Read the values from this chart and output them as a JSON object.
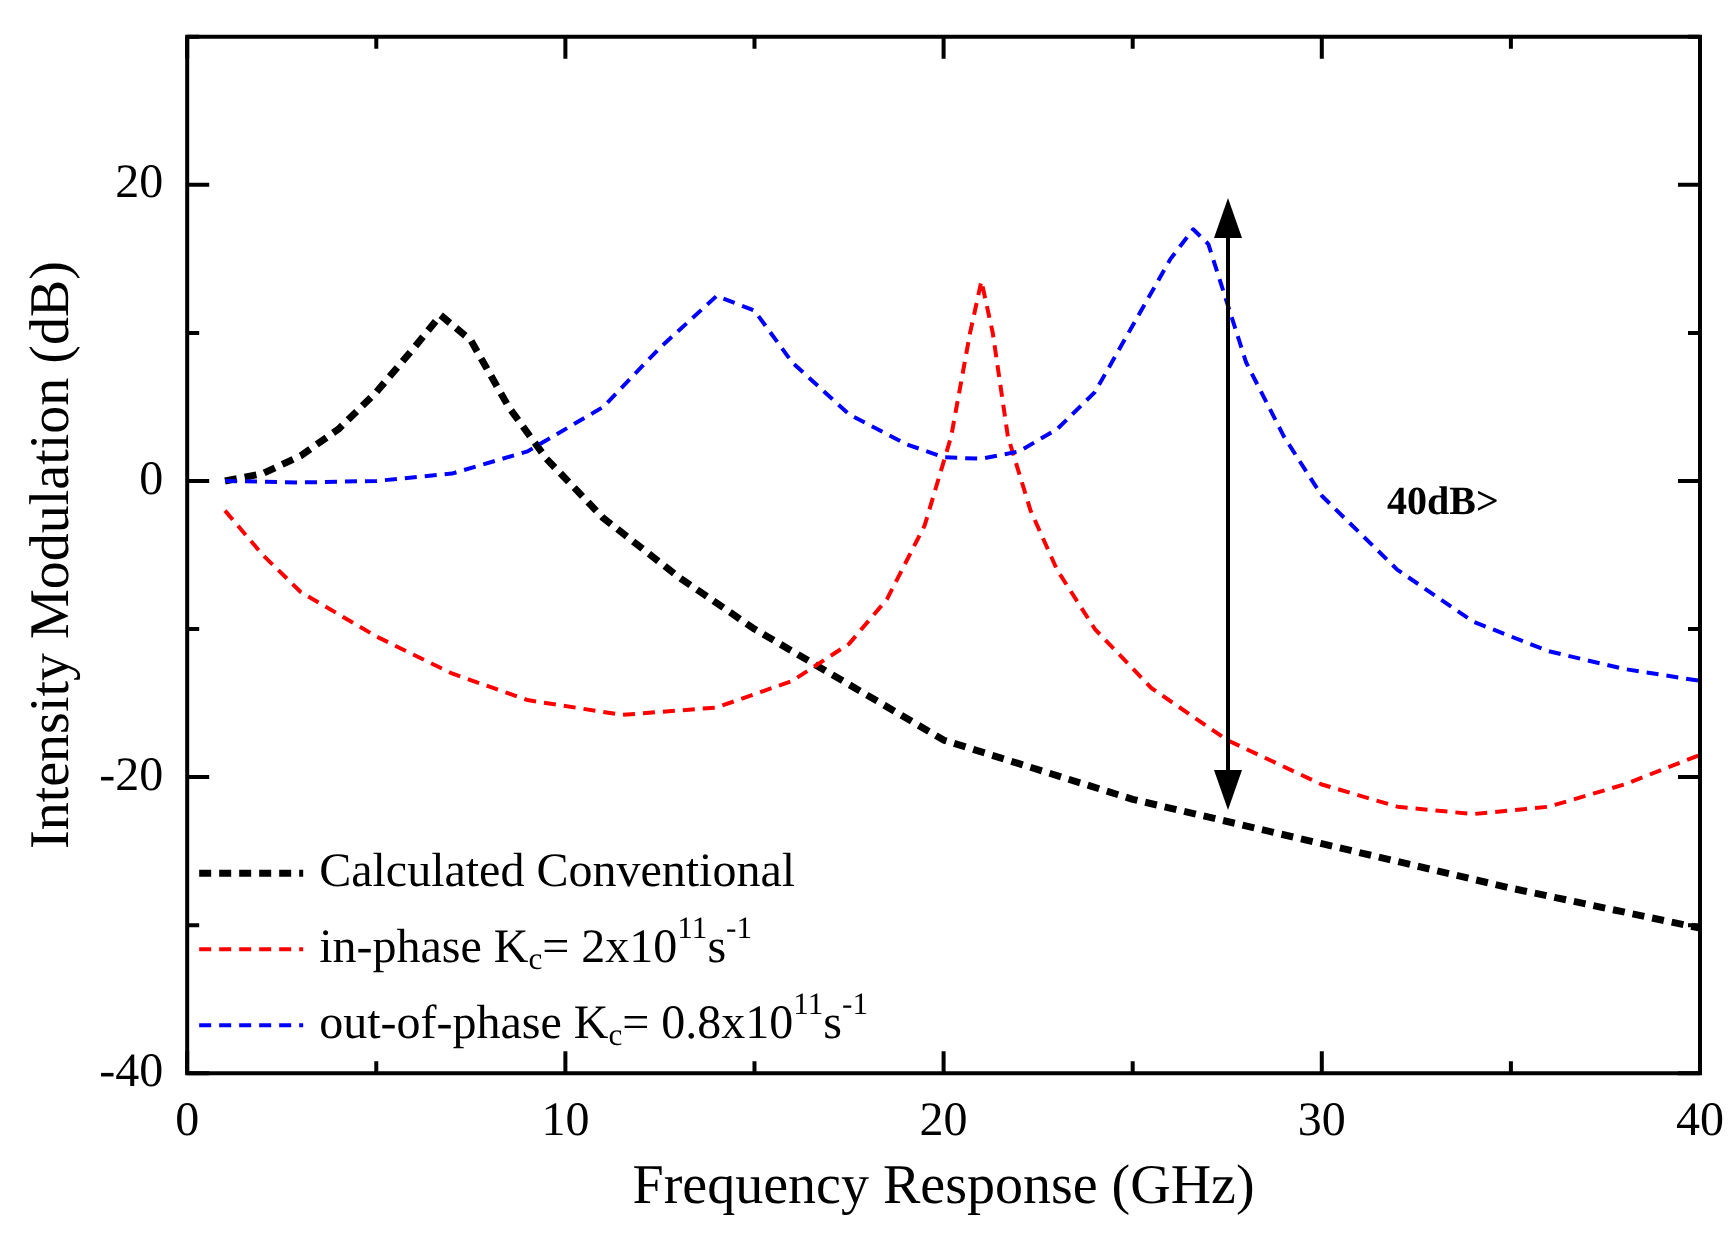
{
  "chart_data": {
    "type": "line",
    "xlabel": "Frequency Response (GHz)",
    "ylabel": "Intensity Modulation (dB)",
    "xlim": [
      0,
      40
    ],
    "xticks": [
      0,
      {
        "value": 5,
        "label": null
      },
      10,
      {
        "value": 15,
        "label": null
      },
      20,
      {
        "value": 25,
        "label": null
      },
      30,
      {
        "value": 35,
        "label": null
      },
      40
    ],
    "ylim": [
      -40,
      30
    ],
    "yticks": [
      -40,
      {
        "value": -30,
        "label": null
      },
      -20,
      {
        "value": -10,
        "label": null
      },
      0,
      {
        "value": 10,
        "label": null
      },
      20,
      {
        "value": 30,
        "label": null
      }
    ],
    "grid": false,
    "legend": "bottom left",
    "line_style": "dashed",
    "marker": "none",
    "annotations": [
      "40dB>"
    ],
    "series": [
      {
        "name": "Calculated Conventional",
        "color": "#000000",
        "x": [
          1,
          2,
          3,
          4,
          5,
          6,
          6.7,
          7.5,
          8.5,
          9.5,
          11,
          13,
          15,
          17,
          20,
          25,
          27.5,
          30,
          35,
          40
        ],
        "values": [
          0,
          0.5,
          1.7,
          3.5,
          6,
          9,
          11.2,
          9.5,
          5,
          1.5,
          -2.5,
          -6.5,
          -10,
          -13,
          -17.5,
          -21.5,
          -23,
          -24.5,
          -27.5,
          -30.2
        ]
      },
      {
        "name": "in-phase K$_{c}$= 2x10$^{11}$s$^{-1}$",
        "color": "#ff0000",
        "x": [
          1,
          2,
          3,
          5,
          7,
          9,
          11.5,
          14,
          16,
          17.5,
          18.5,
          19.5,
          20.2,
          20.7,
          21,
          21.3,
          21.7,
          22.3,
          23,
          24,
          25.5,
          27.5,
          30,
          32,
          34,
          36,
          38,
          40
        ],
        "values": [
          -2,
          -5,
          -7.5,
          -10.5,
          -13,
          -14.8,
          -15.8,
          -15.3,
          -13.5,
          -11,
          -8,
          -3,
          3,
          10,
          13.5,
          10,
          3,
          -2,
          -6,
          -10,
          -14,
          -17.5,
          -20.5,
          -22,
          -22.5,
          -22,
          -20.5,
          -18.5
        ]
      },
      {
        "name": "out-of-phase K$_{c}$= 0.8x10$^{11}$s$^{-1}$",
        "color": "#0000ff",
        "x": [
          1,
          3,
          5,
          7,
          9,
          11,
          12.5,
          14,
          15,
          16,
          17.5,
          19,
          20,
          21,
          22,
          23,
          24,
          25,
          26,
          26.6,
          27,
          27.5,
          28,
          29,
          30,
          32,
          34,
          36,
          38,
          40
        ],
        "values": [
          0,
          -0.1,
          0,
          0.5,
          2,
          5,
          9,
          12.5,
          11.5,
          8,
          4.5,
          2.5,
          1.6,
          1.5,
          2,
          3.5,
          6,
          10.5,
          15,
          17,
          16,
          12,
          8,
          3,
          -1,
          -6,
          -9.5,
          -11.5,
          -12.7,
          -13.5
        ]
      }
    ]
  }
}
